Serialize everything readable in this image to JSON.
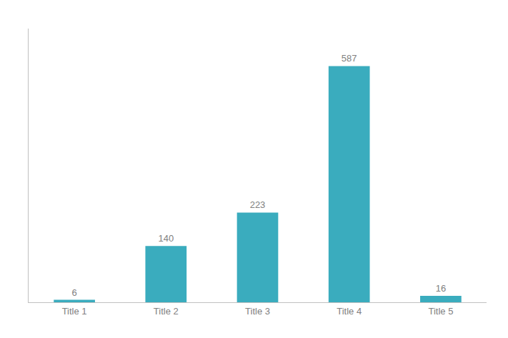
{
  "chart_data": {
    "type": "bar",
    "categories": [
      "Title 1",
      "Title 2",
      "Title 3",
      "Title 4",
      "Title 5"
    ],
    "values": [
      6,
      140,
      223,
      587,
      16
    ],
    "color": "#3aacbe",
    "ylim": [
      0,
      680
    ],
    "data_labels": true,
    "tick_labels": "x",
    "grid": false
  }
}
